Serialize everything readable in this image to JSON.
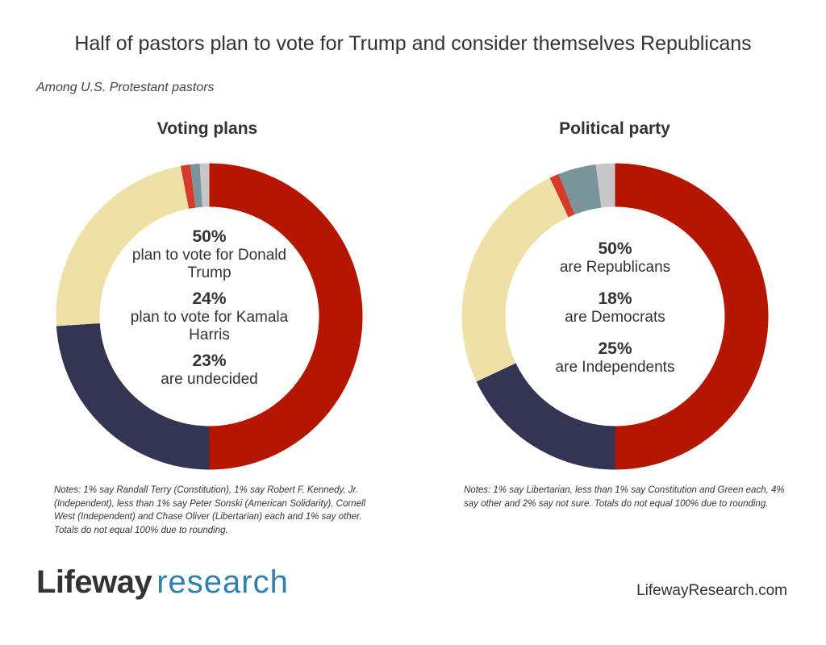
{
  "header": {
    "title": "Half of pastors plan to vote for Trump and consider themselves Republicans",
    "subtitle": "Among U.S. Protestant pastors"
  },
  "colors": {
    "red": "#b41600",
    "navy": "#333552",
    "tan": "#efe0a6",
    "brightRed": "#d63a2a",
    "slate": "#7b939a",
    "gray": "#c7c7c7"
  },
  "chart_data": [
    {
      "type": "pie",
      "variant": "donut",
      "title": "Voting plans",
      "slices": [
        {
          "value": 50,
          "color": "#b41600"
        },
        {
          "value": 24,
          "color": "#333552"
        },
        {
          "value": 23,
          "color": "#efe0a6"
        },
        {
          "value": 1,
          "color": "#d63a2a"
        },
        {
          "value": 1,
          "color": "#7b939a"
        },
        {
          "value": 1,
          "color": "#c7c7c7"
        }
      ],
      "center_labels": [
        {
          "pct": "50%",
          "label": "plan to vote for Donald Trump"
        },
        {
          "pct": "24%",
          "label": "plan to vote for Kamala Harris"
        },
        {
          "pct": "23%",
          "label": "are undecided"
        }
      ],
      "notes": "Notes: 1% say Randall Terry (Constitution), 1% say Robert F. Kennedy, Jr. (Independent), less than 1% say Peter Sonski (American Solidarity), Cornell West (Independent) and Chase Oliver (Libertarian) each and 1% say other. Totals do not equal 100% due to rounding."
    },
    {
      "type": "pie",
      "variant": "donut",
      "title": "Political party",
      "slices": [
        {
          "value": 50,
          "color": "#b41600"
        },
        {
          "value": 18,
          "color": "#333552"
        },
        {
          "value": 25,
          "color": "#efe0a6"
        },
        {
          "value": 1,
          "color": "#d63a2a"
        },
        {
          "value": 4,
          "color": "#7b939a"
        },
        {
          "value": 2,
          "color": "#c7c7c7"
        }
      ],
      "center_labels": [
        {
          "pct": "50%",
          "label": "are Republicans"
        },
        {
          "pct": "18%",
          "label": "are Democrats"
        },
        {
          "pct": "25%",
          "label": "are Independents"
        }
      ],
      "notes": "Notes: 1% say Libertarian, less than 1% say Constitution and Green each, 4% say other and 2% say not sure. Totals do not equal 100% due to rounding."
    }
  ],
  "footer": {
    "logo_word1": "Lifeway",
    "logo_word2": "research",
    "website": "LifewayResearch.com"
  }
}
